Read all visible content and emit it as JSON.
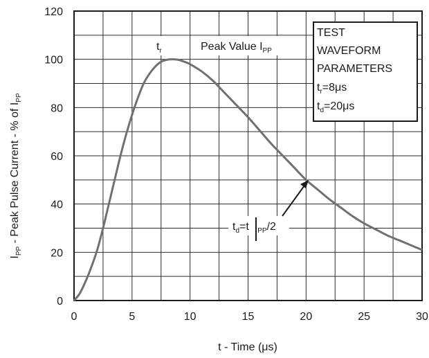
{
  "chart_data": {
    "type": "line",
    "xlabel": "t - Time (μs)",
    "ylabel": {
      "main": "I",
      "sub1": "PP",
      "mid": " - Peak Pulse Current - % of I",
      "sub2": "PP"
    },
    "xlim": [
      0,
      30
    ],
    "ylim": [
      0,
      120
    ],
    "xticks": [
      0,
      5,
      10,
      15,
      20,
      25,
      30
    ],
    "yticks": [
      0,
      20,
      40,
      60,
      80,
      100,
      120
    ],
    "grid": true,
    "series": [
      {
        "x": [
          0,
          0.5,
          1,
          1.5,
          2,
          2.5,
          3,
          3.5,
          4,
          4.5,
          5,
          5.5,
          6,
          6.5,
          7,
          7.5,
          8,
          8.5,
          9,
          9.5,
          10,
          11,
          12,
          13,
          14,
          15,
          16,
          17,
          18,
          19,
          20,
          21,
          22,
          23,
          24,
          25,
          26,
          27,
          28,
          29,
          30
        ],
        "y": [
          0,
          3,
          8,
          14,
          21,
          30,
          40,
          50,
          60,
          69,
          77,
          84,
          90,
          94,
          97,
          99,
          99.8,
          100,
          99.8,
          99,
          98,
          95,
          91,
          86,
          81,
          76,
          70.5,
          65,
          60,
          55,
          50,
          46,
          42,
          38.5,
          35,
          32,
          29.5,
          27,
          25,
          23,
          21
        ],
        "color": "#707070"
      }
    ],
    "annotations": {
      "tr": {
        "main": "t",
        "sub": "r"
      },
      "peak": {
        "main": "Peak Value I",
        "sub": "PP"
      },
      "td": {
        "pre_main": "t",
        "pre_sub": "d",
        "mid": "=t",
        "post_main": "I",
        "post_sub": "PP",
        "post_tail": "/2"
      }
    },
    "params": {
      "line1": "TEST",
      "line2": "WAVEFORM",
      "line3": "PARAMETERS",
      "tr": {
        "main": "t",
        "sub": "r",
        "tail": "=8μs"
      },
      "td": {
        "main": "t",
        "sub": "d",
        "tail": "=20μs"
      }
    }
  }
}
